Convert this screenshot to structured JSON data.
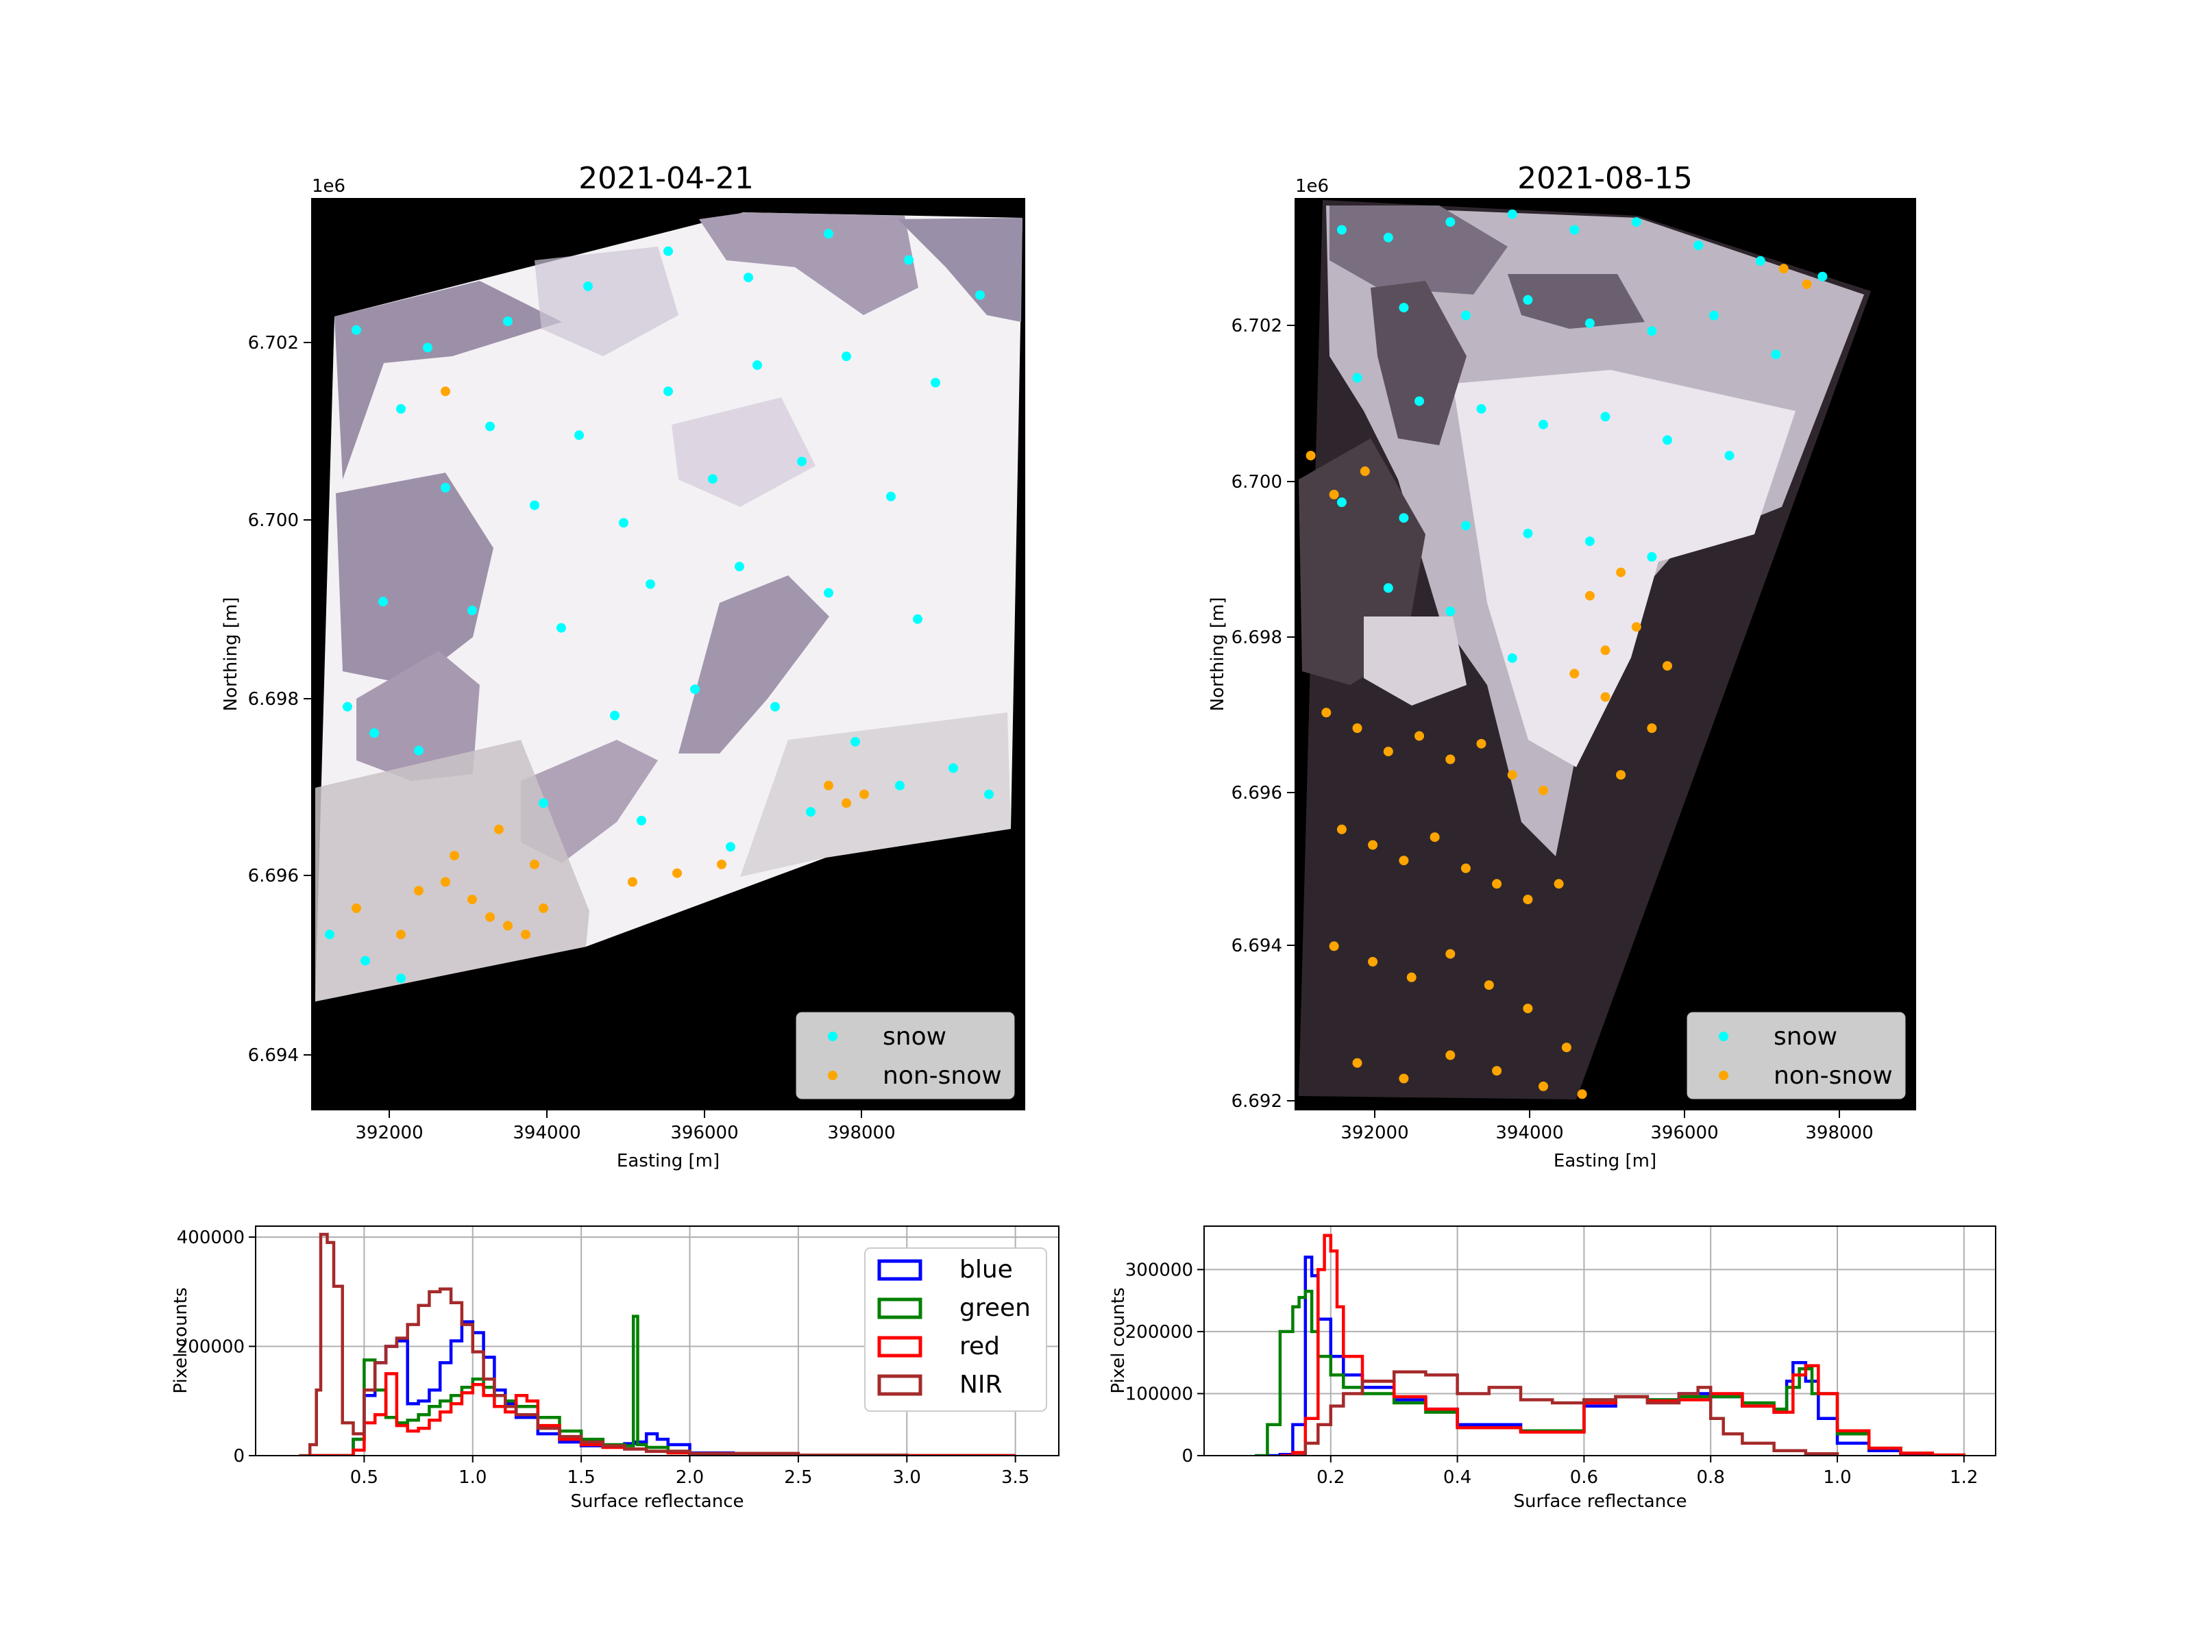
{
  "maps": [
    {
      "title": "2021-04-21",
      "xlabel": "Easting [m]",
      "ylabel": "Northing [m]",
      "yoffset": "1e6",
      "xticks": [
        "392000",
        "394000",
        "396000",
        "398000"
      ],
      "yticks": [
        "6.694",
        "6.696",
        "6.698",
        "6.700",
        "6.702"
      ],
      "legend": [
        "snow",
        "non-snow"
      ]
    },
    {
      "title": "2021-08-15",
      "xlabel": "Easting [m]",
      "ylabel": "Northing [m]",
      "yoffset": "1e6",
      "xticks": [
        "392000",
        "394000",
        "396000",
        "398000"
      ],
      "yticks": [
        "6.692",
        "6.694",
        "6.696",
        "6.698",
        "6.700",
        "6.702"
      ],
      "legend": [
        "snow",
        "non-snow"
      ]
    }
  ],
  "colors": {
    "snow": "#00ffff",
    "non_snow": "#ffa500",
    "blue": "#0000ff",
    "green": "#008000",
    "red": "#ff0000",
    "nir": "#a52a2a"
  },
  "chart_data": [
    {
      "type": "scatter",
      "title": "2021-04-21",
      "xlabel": "Easting [m]",
      "ylabel": "Northing [m]",
      "xlim": [
        391000,
        399000
      ],
      "ylim": [
        6693300,
        6703700
      ],
      "series": [
        {
          "name": "snow",
          "x": [
            391500,
            392300,
            393200,
            394100,
            395000,
            395900,
            396800,
            397700,
            398500,
            392000,
            393000,
            394000,
            395000,
            396000,
            397000,
            398000,
            392500,
            393500,
            394500,
            395500,
            396500,
            397500,
            391800,
            392800,
            393800,
            394800,
            395800,
            396800,
            397800,
            391400,
            391700,
            392200,
            394400,
            395300,
            396200,
            397100,
            398200,
            393600,
            394700,
            395700,
            396600,
            397600,
            398600,
            391200,
            391600,
            392000
          ],
          "y": [
            6702200,
            6702000,
            6702300,
            6702700,
            6703100,
            6702800,
            6703300,
            6703000,
            6702600,
            6701300,
            6701100,
            6701000,
            6701500,
            6701800,
            6701900,
            6701600,
            6700400,
            6700200,
            6700000,
            6700500,
            6700700,
            6700300,
            6699100,
            6699000,
            6698800,
            6699300,
            6699500,
            6699200,
            6698900,
            6697900,
            6697600,
            6697400,
            6697800,
            6698100,
            6697900,
            6697500,
            6697200,
            6696800,
            6696600,
            6696300,
            6696700,
            6697000,
            6696900,
            6695300,
            6695000,
            6694800
          ]
        },
        {
          "name": "non-snow",
          "x": [
            392500,
            392800,
            393000,
            393200,
            393400,
            393600,
            392200,
            392600,
            393100,
            393500,
            391500,
            392000,
            396800,
            397000,
            397200,
            394600,
            395100,
            395600,
            392500
          ],
          "y": [
            6695900,
            6695700,
            6695500,
            6695400,
            6695300,
            6695600,
            6695800,
            6696200,
            6696500,
            6696100,
            6695600,
            6695300,
            6697000,
            6696800,
            6696900,
            6695900,
            6696000,
            6696100,
            6701500
          ]
        }
      ]
    },
    {
      "type": "scatter",
      "title": "2021-08-15",
      "xlabel": "Easting [m]",
      "ylabel": "Northing [m]",
      "xlim": [
        391000,
        399000
      ],
      "ylim": [
        6691900,
        6703600
      ],
      "series": [
        {
          "name": "snow",
          "x": [
            391600,
            392200,
            393000,
            393800,
            394600,
            395400,
            396200,
            397000,
            397800,
            392400,
            393200,
            394000,
            394800,
            395600,
            396400,
            397200,
            391800,
            392600,
            393400,
            394200,
            395000,
            395800,
            396600,
            391600,
            392400,
            393200,
            394000,
            394800,
            395600,
            392200,
            393000,
            393800
          ],
          "y": [
            6703200,
            6703100,
            6703300,
            6703400,
            6703200,
            6703300,
            6703000,
            6702800,
            6702600,
            6702200,
            6702100,
            6702300,
            6702000,
            6701900,
            6702100,
            6701600,
            6701300,
            6701000,
            6700900,
            6700700,
            6700800,
            6700500,
            6700300,
            6699700,
            6699500,
            6699400,
            6699300,
            6699200,
            6699000,
            6698600,
            6698300,
            6697700
          ]
        },
        {
          "name": "non-snow",
          "x": [
            391400,
            391800,
            392200,
            392600,
            393000,
            393400,
            393800,
            394200,
            394600,
            395000,
            395400,
            395800,
            391600,
            392000,
            392400,
            392800,
            393200,
            393600,
            394000,
            394400,
            394800,
            395200,
            391500,
            392000,
            392500,
            393000,
            393500,
            394000,
            394500,
            391800,
            392400,
            393000,
            393600,
            394200,
            394700,
            395200,
            395600,
            395000,
            397300,
            397600,
            391200,
            391500,
            391900
          ],
          "y": [
            6697000,
            6696800,
            6696500,
            6696700,
            6696400,
            6696600,
            6696200,
            6696000,
            6697500,
            6697800,
            6698100,
            6697600,
            6695500,
            6695300,
            6695100,
            6695400,
            6695000,
            6694800,
            6694600,
            6694800,
            6698500,
            6698800,
            6694000,
            6693800,
            6693600,
            6693900,
            6693500,
            6693200,
            6692700,
            6692500,
            6692300,
            6692600,
            6692400,
            6692200,
            6692100,
            6696200,
            6696800,
            6697200,
            6702700,
            6702500,
            6700300,
            6699800,
            6700100
          ]
        }
      ]
    },
    {
      "type": "line",
      "style": "step-histogram",
      "xlabel": "Surface reflectance",
      "ylabel": "Pixel counts",
      "xlim": [
        0.0,
        3.7
      ],
      "ylim": [
        0,
        420000
      ],
      "xticks": [
        "0.5",
        "1.0",
        "1.5",
        "2.0",
        "2.5",
        "3.0",
        "3.5"
      ],
      "yticks": [
        "0",
        "200000",
        "400000"
      ],
      "legend_position": "top-right",
      "series": [
        {
          "name": "blue",
          "x": [
            0.25,
            0.35,
            0.45,
            0.5,
            0.55,
            0.6,
            0.65,
            0.7,
            0.75,
            0.8,
            0.85,
            0.9,
            0.95,
            1.0,
            1.05,
            1.1,
            1.15,
            1.2,
            1.3,
            1.4,
            1.5,
            1.6,
            1.7,
            1.75,
            1.8,
            1.85,
            1.9,
            2.0,
            2.2,
            2.5,
            3.0,
            3.5
          ],
          "y": [
            0,
            0,
            30000,
            110000,
            170000,
            200000,
            210000,
            95000,
            100000,
            120000,
            170000,
            210000,
            245000,
            225000,
            180000,
            120000,
            95000,
            70000,
            40000,
            25000,
            18000,
            18000,
            22000,
            25000,
            40000,
            30000,
            20000,
            5000,
            2000,
            500,
            0,
            0
          ]
        },
        {
          "name": "green",
          "x": [
            0.25,
            0.35,
            0.45,
            0.5,
            0.55,
            0.6,
            0.65,
            0.7,
            0.75,
            0.8,
            0.85,
            0.9,
            0.95,
            1.0,
            1.05,
            1.1,
            1.15,
            1.2,
            1.3,
            1.4,
            1.5,
            1.6,
            1.7,
            1.74,
            1.76,
            1.8,
            1.9,
            2.0,
            2.2,
            2.5,
            3.0,
            3.5
          ],
          "y": [
            0,
            0,
            30000,
            175000,
            120000,
            70000,
            60000,
            65000,
            75000,
            90000,
            100000,
            110000,
            125000,
            140000,
            125000,
            110000,
            100000,
            90000,
            70000,
            45000,
            30000,
            20000,
            18000,
            255000,
            20000,
            15000,
            8000,
            4000,
            1500,
            300,
            0,
            0
          ]
        },
        {
          "name": "red",
          "x": [
            0.25,
            0.35,
            0.45,
            0.5,
            0.55,
            0.6,
            0.65,
            0.7,
            0.75,
            0.8,
            0.85,
            0.9,
            0.95,
            1.0,
            1.05,
            1.1,
            1.15,
            1.2,
            1.25,
            1.3,
            1.4,
            1.5,
            1.6,
            1.7,
            1.8,
            1.9,
            2.0,
            2.2,
            2.5,
            3.0,
            3.5
          ],
          "y": [
            0,
            0,
            10000,
            60000,
            75000,
            150000,
            55000,
            45000,
            50000,
            65000,
            80000,
            95000,
            115000,
            130000,
            110000,
            90000,
            80000,
            110000,
            100000,
            55000,
            30000,
            20000,
            15000,
            12000,
            8000,
            5000,
            3000,
            1000,
            300,
            0,
            0
          ]
        },
        {
          "name": "NIR",
          "x": [
            0.2,
            0.25,
            0.28,
            0.3,
            0.33,
            0.36,
            0.4,
            0.45,
            0.5,
            0.55,
            0.6,
            0.65,
            0.7,
            0.75,
            0.8,
            0.85,
            0.9,
            0.95,
            1.0,
            1.05,
            1.1,
            1.15,
            1.2,
            1.3,
            1.4,
            1.5,
            1.6,
            1.7,
            1.8,
            2.0,
            2.5,
            3.0
          ],
          "y": [
            0,
            20000,
            120000,
            405000,
            390000,
            310000,
            60000,
            40000,
            120000,
            170000,
            200000,
            215000,
            240000,
            275000,
            300000,
            305000,
            280000,
            240000,
            190000,
            140000,
            110000,
            90000,
            75000,
            50000,
            35000,
            25000,
            18000,
            12000,
            8000,
            4000,
            1000,
            0
          ]
        }
      ]
    },
    {
      "type": "line",
      "style": "step-histogram",
      "xlabel": "Surface reflectance",
      "ylabel": "Pixel counts",
      "xlim": [
        0.0,
        1.25
      ],
      "ylim": [
        0,
        370000
      ],
      "xticks": [
        "0.2",
        "0.4",
        "0.6",
        "0.8",
        "1.0",
        "1.2"
      ],
      "yticks": [
        "0",
        "100000",
        "200000",
        "300000"
      ],
      "series": [
        {
          "name": "blue",
          "x": [
            0.1,
            0.12,
            0.14,
            0.16,
            0.17,
            0.18,
            0.2,
            0.22,
            0.25,
            0.3,
            0.35,
            0.4,
            0.5,
            0.6,
            0.65,
            0.7,
            0.75,
            0.8,
            0.85,
            0.9,
            0.92,
            0.93,
            0.95,
            0.97,
            1.0,
            1.05,
            1.1,
            1.15,
            1.2
          ],
          "y": [
            0,
            2000,
            50000,
            320000,
            290000,
            220000,
            160000,
            130000,
            110000,
            90000,
            75000,
            50000,
            40000,
            80000,
            95000,
            90000,
            100000,
            95000,
            80000,
            70000,
            120000,
            150000,
            120000,
            60000,
            20000,
            8000,
            3000,
            800,
            0
          ]
        },
        {
          "name": "green",
          "x": [
            0.08,
            0.1,
            0.12,
            0.14,
            0.15,
            0.16,
            0.17,
            0.18,
            0.2,
            0.22,
            0.25,
            0.3,
            0.35,
            0.4,
            0.5,
            0.6,
            0.65,
            0.7,
            0.75,
            0.8,
            0.85,
            0.9,
            0.92,
            0.94,
            0.96,
            1.0,
            1.05,
            1.1,
            1.15,
            1.2
          ],
          "y": [
            0,
            50000,
            200000,
            240000,
            255000,
            265000,
            200000,
            160000,
            130000,
            110000,
            100000,
            85000,
            70000,
            45000,
            40000,
            90000,
            95000,
            90000,
            95000,
            95000,
            85000,
            75000,
            110000,
            140000,
            100000,
            35000,
            12000,
            4000,
            1000,
            0
          ]
        },
        {
          "name": "red",
          "x": [
            0.12,
            0.14,
            0.16,
            0.18,
            0.19,
            0.2,
            0.21,
            0.22,
            0.25,
            0.3,
            0.35,
            0.4,
            0.5,
            0.6,
            0.65,
            0.7,
            0.75,
            0.8,
            0.85,
            0.9,
            0.93,
            0.95,
            0.97,
            1.0,
            1.05,
            1.1,
            1.15,
            1.2
          ],
          "y": [
            0,
            5000,
            60000,
            300000,
            355000,
            330000,
            240000,
            160000,
            120000,
            95000,
            75000,
            45000,
            38000,
            85000,
            95000,
            88000,
            90000,
            100000,
            80000,
            70000,
            130000,
            145000,
            100000,
            40000,
            12000,
            4000,
            1000,
            0
          ]
        },
        {
          "name": "NIR",
          "x": [
            0.14,
            0.16,
            0.18,
            0.2,
            0.22,
            0.25,
            0.3,
            0.35,
            0.4,
            0.45,
            0.5,
            0.55,
            0.6,
            0.65,
            0.7,
            0.75,
            0.78,
            0.8,
            0.82,
            0.85,
            0.9,
            0.95,
            1.0
          ],
          "y": [
            0,
            20000,
            50000,
            80000,
            100000,
            120000,
            135000,
            130000,
            100000,
            110000,
            90000,
            85000,
            90000,
            95000,
            85000,
            100000,
            110000,
            60000,
            35000,
            20000,
            8000,
            3000,
            0
          ]
        }
      ]
    }
  ]
}
